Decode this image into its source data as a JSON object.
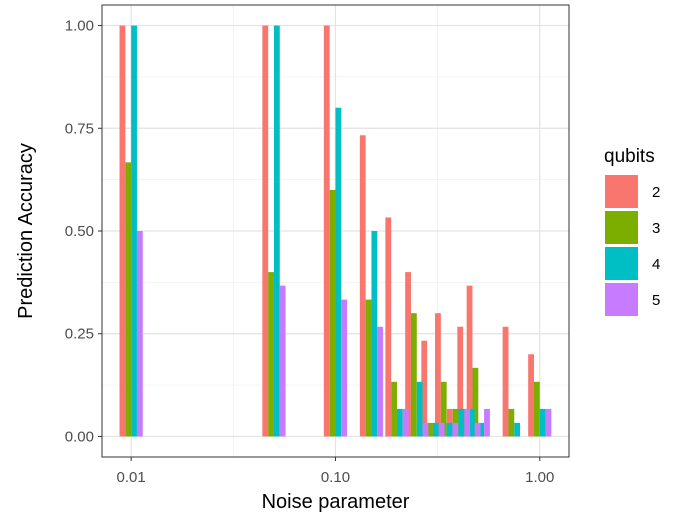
{
  "chart_data": {
    "type": "bar",
    "x_scale": "log10",
    "xlabel": "Noise parameter",
    "ylabel": "Prediction Accuracy",
    "xlim": [
      0.0072,
      1.39
    ],
    "ylim": [
      -0.05,
      1.05
    ],
    "x_ticks": [
      0.01,
      0.1,
      1.0
    ],
    "x_tick_labels": [
      "0.01",
      "0.10",
      "1.00"
    ],
    "y_ticks": [
      0.0,
      0.25,
      0.5,
      0.75,
      1.0
    ],
    "y_tick_labels": [
      "0.00",
      "0.25",
      "0.50",
      "0.75",
      "1.00"
    ],
    "grid": true,
    "legend": {
      "title": "qubits",
      "position": "right"
    },
    "series": [
      {
        "name": "2",
        "color": "#F8766D",
        "points": [
          [
            0.01,
            1.0
          ],
          [
            0.05,
            1.0
          ],
          [
            0.1,
            1.0
          ],
          [
            0.15,
            0.733
          ],
          [
            0.2,
            0.533
          ],
          [
            0.25,
            0.4
          ],
          [
            0.3,
            0.233
          ],
          [
            0.35,
            0.3
          ],
          [
            0.4,
            0.067
          ],
          [
            0.45,
            0.267
          ],
          [
            0.5,
            0.367
          ],
          [
            0.75,
            0.267
          ],
          [
            1.0,
            0.2
          ]
        ]
      },
      {
        "name": "3",
        "color": "#7CAE00",
        "points": [
          [
            0.01,
            0.667
          ],
          [
            0.05,
            0.4
          ],
          [
            0.1,
            0.6
          ],
          [
            0.15,
            0.333
          ],
          [
            0.2,
            0.133
          ],
          [
            0.25,
            0.3
          ],
          [
            0.3,
            0.033
          ],
          [
            0.35,
            0.133
          ],
          [
            0.4,
            0.067
          ],
          [
            0.45,
            0.067
          ],
          [
            0.5,
            0.167
          ],
          [
            0.75,
            0.067
          ],
          [
            1.0,
            0.133
          ]
        ]
      },
      {
        "name": "4",
        "color": "#00BFC4",
        "points": [
          [
            0.01,
            1.0
          ],
          [
            0.05,
            1.0
          ],
          [
            0.1,
            0.8
          ],
          [
            0.15,
            0.5
          ],
          [
            0.2,
            0.067
          ],
          [
            0.25,
            0.133
          ],
          [
            0.3,
            0.033
          ],
          [
            0.35,
            0.033
          ],
          [
            0.4,
            0.067
          ],
          [
            0.45,
            0.067
          ],
          [
            0.5,
            0.033
          ],
          [
            0.75,
            0.033
          ],
          [
            1.0,
            0.067
          ]
        ]
      },
      {
        "name": "5",
        "color": "#C77CFF",
        "points": [
          [
            0.01,
            0.5
          ],
          [
            0.05,
            0.367
          ],
          [
            0.1,
            0.333
          ],
          [
            0.15,
            0.267
          ],
          [
            0.2,
            0.067
          ],
          [
            0.25,
            0.033
          ],
          [
            0.3,
            0.033
          ],
          [
            0.35,
            0.033
          ],
          [
            0.4,
            0.067
          ],
          [
            0.45,
            0.033
          ],
          [
            0.5,
            0.067
          ],
          [
            0.75,
            0.0
          ],
          [
            1.0,
            0.067
          ]
        ]
      }
    ]
  }
}
